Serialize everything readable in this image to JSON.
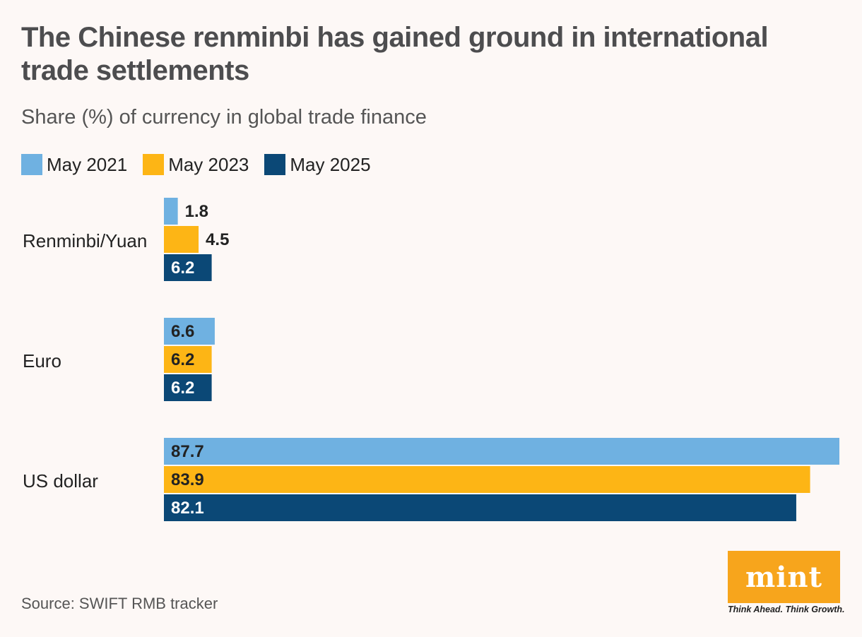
{
  "title": "The Chinese renminbi has gained ground in international trade settlements",
  "subtitle": "Share (%) of currency in global trade finance",
  "source": "Source: SWIFT RMB tracker",
  "logo": {
    "text": "mint",
    "tagline": "Think Ahead. Think Growth."
  },
  "colors": {
    "background": "#fdf8f6",
    "logo": "#f7a51c"
  },
  "legend": [
    {
      "label": "May 2021",
      "color": "#6fb1e1"
    },
    {
      "label": "May 2023",
      "color": "#fdb515"
    },
    {
      "label": "May 2025",
      "color": "#0b4876"
    }
  ],
  "chart_data": {
    "type": "bar",
    "orientation": "horizontal",
    "title": "The Chinese renminbi has gained ground in international trade settlements",
    "subtitle": "Share (%) of currency in global trade finance",
    "categories": [
      "Renminbi/Yuan",
      "Euro",
      "US dollar"
    ],
    "series": [
      {
        "name": "May 2021",
        "color": "#6fb1e1",
        "values": [
          1.8,
          6.6,
          87.7
        ]
      },
      {
        "name": "May 2023",
        "color": "#fdb515",
        "values": [
          4.5,
          6.2,
          83.9
        ]
      },
      {
        "name": "May 2025",
        "color": "#0b4876",
        "values": [
          6.2,
          6.2,
          82.1
        ]
      }
    ],
    "xlim": [
      0,
      87.7
    ],
    "grid": false,
    "legend_position": "top-left",
    "source": "Source: SWIFT RMB tracker"
  }
}
